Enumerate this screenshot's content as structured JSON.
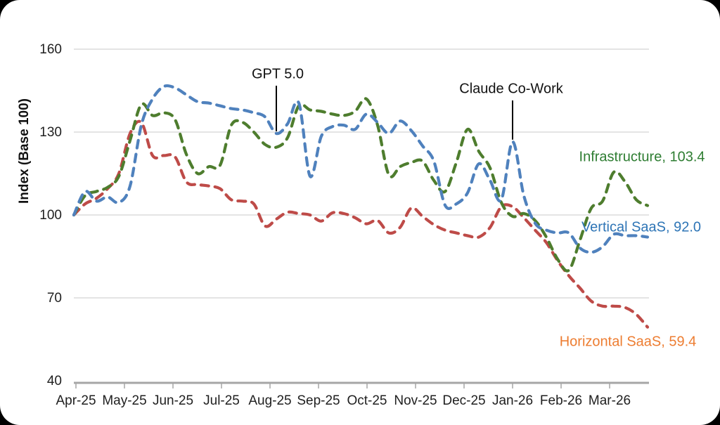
{
  "chart_data": {
    "type": "line",
    "title": "",
    "ylabel": "Index (Base 100)",
    "ylim": [
      40,
      160
    ],
    "yticks": [
      160,
      130,
      100,
      70,
      40
    ],
    "x_tick_labels": [
      "Apr-25",
      "May-25",
      "Jun-25",
      "Jul-25",
      "Aug-25",
      "Sep-25",
      "Oct-25",
      "Nov-25",
      "Dec-25",
      "Jan-26",
      "Feb-26",
      "Mar-26"
    ],
    "x_unit": "weekly",
    "grid": "horizontal",
    "line_style": "dashed",
    "colors": {
      "grid": "#c9c9c9",
      "axis": "#a6a6a6",
      "text": "#1f1f1f",
      "annotation_line": "#000000"
    },
    "series": [
      {
        "name": "Infrastructure",
        "color": "#4E7D2E",
        "label_color": "#2E7D32",
        "end_label": "Infrastructure, 103.4",
        "final_value": 103.4,
        "values": [
          100,
          107,
          108.5,
          110,
          114,
          127,
          140,
          136,
          137,
          134.5,
          122,
          115,
          117.5,
          118,
          132.5,
          133.5,
          130,
          125.5,
          124.5,
          128,
          139.5,
          138,
          137.5,
          136.5,
          136,
          137.5,
          142,
          132.5,
          114.5,
          117.5,
          119,
          119.5,
          112.5,
          108.5,
          119,
          131,
          123,
          117,
          104.5,
          99.5,
          100.5,
          98,
          92,
          84,
          80,
          91,
          102.5,
          105,
          115.5,
          112,
          105.5,
          103.4
        ]
      },
      {
        "name": "Vertical SaaS",
        "color": "#4F81BD",
        "label_color": "#2E75B6",
        "end_label": "Vertical SaaS, 92.0",
        "final_value": 92.0,
        "values": [
          100,
          108.5,
          105,
          106.5,
          104.5,
          110.5,
          132.5,
          142,
          146.5,
          146,
          143.5,
          141,
          140.5,
          139.5,
          138.5,
          138,
          137,
          135.5,
          129.5,
          133,
          140.5,
          114,
          128.5,
          132,
          132.5,
          131,
          136.5,
          133.5,
          129.5,
          134,
          130.5,
          125,
          119.5,
          103.5,
          104,
          108,
          118.5,
          112.5,
          105.5,
          126.5,
          107,
          97,
          94.5,
          93.5,
          93.5,
          88,
          86.5,
          88.5,
          93,
          92.5,
          92.5,
          92
        ]
      },
      {
        "name": "Horizontal SaaS",
        "color": "#BE4B48",
        "label_color": "#ED7D31",
        "end_label": "Horizontal SaaS, 59.4",
        "final_value": 59.4,
        "values": [
          100,
          104,
          106,
          109.5,
          115,
          129.5,
          133.5,
          121.5,
          121.5,
          121,
          112,
          111,
          110.5,
          109.5,
          105.5,
          105,
          104,
          96,
          98.5,
          101,
          100.5,
          100,
          97.8,
          100.8,
          100.5,
          99,
          96.8,
          98,
          93.5,
          95.5,
          102.5,
          99.5,
          96.5,
          94.5,
          93.5,
          92.5,
          92,
          95.5,
          103,
          103,
          99,
          94.5,
          90,
          83.5,
          78,
          73.5,
          68.8,
          67,
          67,
          66.5,
          64,
          59.4
        ]
      }
    ],
    "annotations": [
      {
        "label": "GPT 5.0",
        "series": "Vertical SaaS",
        "week_index": 18
      },
      {
        "label": "Claude Co-Work",
        "series": "Vertical SaaS",
        "week_index": 39
      }
    ]
  }
}
